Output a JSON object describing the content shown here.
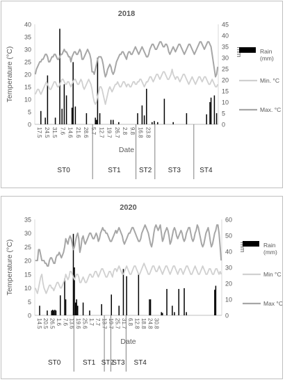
{
  "colors": {
    "temp_line": "#a6a6a6",
    "min_line": "#d0d0d0",
    "rain_bar": "#000000",
    "axis_text": "#595959",
    "grid": "#d9d9d9"
  },
  "chart_data": [
    {
      "type": "bar+line",
      "title": "2018",
      "xlabel": "Date",
      "ylabel": "Temperature (°C)",
      "ylabel_right": "mm",
      "ylim": [
        0,
        40
      ],
      "yticks": [
        0,
        5,
        10,
        15,
        20,
        25,
        30,
        35,
        40
      ],
      "ylim_right": [
        0,
        45
      ],
      "yticks_right": [
        0,
        5,
        10,
        15,
        20,
        25,
        30,
        35,
        40,
        45
      ],
      "grid": false,
      "legend_position": "right",
      "legend": [
        {
          "label": "Rain\n(mm)",
          "type": "bar"
        },
        {
          "label": "Min. °C",
          "type": "line"
        },
        {
          "label": "Max. °C",
          "type": "line"
        }
      ],
      "n_days": 165,
      "x_tick_labels": [
        "17.5",
        "24.5",
        "31.5",
        "7.6",
        "14.6",
        "21.6",
        "28.6",
        "5.7",
        "12.7",
        "19.7",
        "26.7",
        "2.8",
        "9.8",
        "16.8",
        "23.8"
      ],
      "x_tick_step": 7,
      "stages": [
        {
          "label": "ST0",
          "start": 0,
          "end": 52
        },
        {
          "label": "ST1",
          "start": 52,
          "end": 91
        },
        {
          "label": "ST2",
          "start": 91,
          "end": 108
        },
        {
          "label": "ST3",
          "start": 108,
          "end": 143
        },
        {
          "label": "ST4",
          "start": 143,
          "end": 165
        }
      ],
      "series": [
        {
          "name": "Max. °C",
          "axis": "left",
          "values": [
            20,
            22,
            23,
            24,
            25,
            25,
            26,
            26,
            27,
            28,
            28,
            27,
            25,
            25,
            26,
            27,
            27,
            28,
            28,
            27,
            26,
            26,
            27,
            28,
            28,
            29,
            30,
            29,
            29,
            28,
            27,
            27,
            25,
            27,
            28,
            29,
            29,
            28,
            28,
            29,
            30,
            29,
            26,
            26,
            27,
            28,
            29,
            30,
            29,
            28,
            26,
            21,
            21,
            20,
            22,
            24,
            26,
            27,
            27,
            27,
            26,
            24,
            21,
            19,
            20,
            22,
            23,
            24,
            23,
            21,
            20,
            21,
            23,
            25,
            26,
            27,
            28,
            28,
            29,
            29,
            28,
            27,
            26,
            28,
            29,
            29,
            28,
            28,
            29,
            30,
            31,
            30,
            29,
            28,
            29,
            30,
            31,
            30,
            29,
            28,
            27,
            27,
            28,
            30,
            31,
            32,
            32,
            31,
            30,
            30,
            31,
            32,
            33,
            33,
            32,
            31,
            31,
            32,
            32,
            31,
            29,
            28,
            29,
            30,
            31,
            30,
            29,
            30,
            31,
            32,
            32,
            31,
            30,
            29,
            28,
            29,
            30,
            31,
            32,
            32,
            31,
            30,
            29,
            28,
            29,
            30,
            31,
            32,
            33,
            33,
            32,
            31,
            30,
            31,
            32,
            33,
            33,
            32,
            31,
            28,
            25,
            22,
            19,
            20,
            23
          ]
        },
        {
          "name": "Min. °C",
          "axis": "left",
          "values": [
            12,
            13,
            14,
            14,
            13,
            12,
            13,
            14,
            15,
            16,
            17,
            16,
            15,
            14,
            14,
            15,
            16,
            17,
            17,
            16,
            15,
            15,
            16,
            17,
            18,
            18,
            17,
            16,
            16,
            17,
            17,
            16,
            15,
            16,
            17,
            18,
            18,
            17,
            16,
            16,
            17,
            18,
            17,
            15,
            14,
            15,
            16,
            17,
            18,
            17,
            16,
            14,
            11,
            9,
            8,
            9,
            11,
            13,
            15,
            15,
            14,
            12,
            10,
            8,
            10,
            12,
            14,
            15,
            14,
            13,
            14,
            15,
            16,
            16,
            17,
            16,
            15,
            15,
            16,
            17,
            17,
            16,
            15,
            16,
            16,
            15,
            15,
            16,
            17,
            17,
            16,
            16,
            17,
            17,
            18,
            18,
            17,
            16,
            15,
            16,
            17,
            17,
            18,
            19,
            19,
            18,
            17,
            18,
            19,
            20,
            20,
            19,
            18,
            19,
            20,
            21,
            21,
            20,
            19,
            18,
            18,
            19,
            20,
            22,
            20,
            19,
            18,
            19,
            19,
            18,
            17,
            18,
            19,
            20,
            20,
            19,
            18,
            17,
            16,
            17,
            18,
            19,
            18,
            17,
            16,
            17,
            18,
            19,
            19,
            18,
            17,
            18,
            19,
            19,
            18,
            17,
            16,
            16,
            17,
            18,
            17,
            16,
            15,
            15,
            16
          ]
        },
        {
          "name": "Rain (mm)",
          "axis": "right",
          "type": "bar",
          "points": [
            [
              5,
              6
            ],
            [
              9,
              3
            ],
            [
              11,
              22
            ],
            [
              18,
              3
            ],
            [
              22,
              43
            ],
            [
              24,
              7
            ],
            [
              26,
              18
            ],
            [
              28,
              13
            ],
            [
              33,
              7.5
            ],
            [
              34,
              28
            ],
            [
              36,
              8
            ],
            [
              46,
              5
            ],
            [
              54,
              3
            ],
            [
              55,
              2
            ],
            [
              56,
              30
            ],
            [
              58,
              5
            ],
            [
              68,
              2
            ],
            [
              70,
              2
            ],
            [
              75,
              1
            ],
            [
              92,
              5
            ],
            [
              96,
              8.5
            ],
            [
              98,
              4
            ],
            [
              100,
              16
            ],
            [
              105,
              1
            ],
            [
              107,
              1.5
            ],
            [
              110,
              1
            ],
            [
              116,
              11.5
            ],
            [
              124,
              1
            ],
            [
              136,
              5
            ],
            [
              154,
              4.5
            ],
            [
              157,
              10
            ],
            [
              158,
              12
            ],
            [
              161,
              13
            ],
            [
              163,
              5
            ]
          ]
        }
      ]
    },
    {
      "type": "bar+line",
      "title": "2020",
      "xlabel": "Date",
      "ylabel": "Temperature (°C)",
      "ylabel_right": "mm",
      "ylim": [
        0,
        35
      ],
      "yticks": [
        0,
        5,
        10,
        15,
        20,
        25,
        30,
        35
      ],
      "ylim_right": [
        0,
        60
      ],
      "yticks_right": [
        0,
        10,
        20,
        30,
        40,
        50,
        60
      ],
      "grid": false,
      "legend_position": "right",
      "legend": [
        {
          "label": "Rain\n(mm)",
          "type": "bar"
        },
        {
          "label": "Min °C",
          "type": "line"
        },
        {
          "label": "Max °C",
          "type": "line"
        }
      ],
      "n_days": 172,
      "x_tick_labels": [
        "14.5",
        "20.5",
        "26.5",
        "1.6",
        "7.6",
        "13.6",
        "19.6",
        "25.6",
        "1.7",
        "7.7",
        "13.7",
        "19.7",
        "25.7",
        "31.7",
        "6.8",
        "12.8",
        "18.8",
        "24.8",
        "30.8"
      ],
      "x_tick_step": 6,
      "stages": [
        {
          "label": "ST0",
          "start": 0,
          "end": 36
        },
        {
          "label": "ST1",
          "start": 36,
          "end": 64
        },
        {
          "label": "ST2",
          "start": 64,
          "end": 70
        },
        {
          "label": "ST3",
          "start": 70,
          "end": 84
        },
        {
          "label": "ST4",
          "start": 84,
          "end": 110
        }
      ],
      "series": [
        {
          "name": "Max °C",
          "axis": "left",
          "values": [
            20,
            20,
            20,
            24,
            24,
            22,
            20,
            20,
            20,
            19,
            19,
            18,
            18,
            20,
            21,
            21,
            20,
            19,
            19,
            21,
            22,
            22,
            23,
            22,
            21,
            22,
            23,
            25,
            28,
            27,
            26,
            28,
            29,
            28,
            26,
            24,
            25,
            27,
            29,
            30,
            28,
            23,
            25,
            28,
            29,
            27,
            26,
            27,
            28,
            29,
            30,
            30,
            29,
            28,
            28,
            29,
            30,
            29,
            27,
            28,
            30,
            31,
            32,
            31,
            31,
            30,
            30,
            29,
            28,
            27,
            27,
            28,
            29,
            30,
            31,
            30,
            31,
            32,
            31,
            30,
            29,
            27,
            26,
            27,
            28,
            29,
            30,
            30,
            31,
            32,
            32,
            31,
            30,
            29,
            28,
            27,
            27,
            28,
            30,
            31,
            32,
            33,
            32,
            31,
            30,
            28,
            26,
            25,
            27,
            30,
            32,
            33,
            32,
            31,
            32,
            33,
            30,
            27,
            28,
            30,
            31,
            32,
            31,
            29,
            26,
            27,
            29,
            31,
            32,
            31,
            29,
            28,
            29,
            30,
            31,
            30,
            28,
            27,
            28,
            30,
            31,
            32,
            32,
            30,
            28,
            27,
            28,
            30,
            31,
            33,
            32,
            30,
            28,
            26,
            25,
            26,
            28,
            30,
            31,
            32,
            30,
            27,
            25,
            26,
            28,
            30,
            31,
            33,
            33,
            30,
            25,
            20
          ]
        },
        {
          "name": "Min °C",
          "axis": "left",
          "values": [
            10,
            9,
            8,
            10,
            12,
            14,
            15,
            12,
            10,
            9,
            8,
            9,
            10,
            11,
            11,
            10,
            10,
            9,
            10,
            11,
            12,
            12,
            11,
            10,
            10,
            11,
            12,
            13,
            15,
            14,
            13,
            14,
            16,
            16,
            15,
            14,
            13,
            14,
            15,
            15,
            14,
            12,
            12,
            13,
            14,
            13,
            12,
            12,
            13,
            14,
            15,
            15,
            14,
            14,
            15,
            16,
            16,
            15,
            14,
            15,
            16,
            17,
            17,
            16,
            15,
            14,
            14,
            15,
            16,
            16,
            15,
            14,
            16,
            17,
            17,
            16,
            17,
            18,
            17,
            16,
            15,
            15,
            16,
            17,
            18,
            17,
            16,
            15,
            15,
            16,
            17,
            18,
            18,
            17,
            16,
            15,
            15,
            16,
            17,
            18,
            19,
            18,
            17,
            16,
            15,
            15,
            16,
            17,
            18,
            18,
            17,
            16,
            16,
            17,
            18,
            17,
            16,
            15,
            16,
            17,
            18,
            18,
            17,
            16,
            15,
            16,
            17,
            18,
            18,
            17,
            16,
            15,
            16,
            17,
            17,
            16,
            15,
            16,
            17,
            18,
            18,
            17,
            16,
            15,
            15,
            16,
            17,
            18,
            17,
            16,
            15,
            15,
            16,
            17,
            18,
            17,
            16,
            15,
            15,
            16,
            17,
            17,
            16,
            15,
            15,
            16,
            17,
            17,
            16,
            15,
            16,
            15
          ]
        },
        {
          "name": "Rain (mm)",
          "axis": "right",
          "type": "bar",
          "points": [
            [
              4,
              6
            ],
            [
              11,
              3
            ],
            [
              15,
              3
            ],
            [
              16,
              3.5
            ],
            [
              17,
              3
            ],
            [
              18,
              3.5
            ],
            [
              19,
              3
            ],
            [
              23,
              12.5
            ],
            [
              27,
              23
            ],
            [
              28,
              10
            ],
            [
              35,
              51
            ],
            [
              36,
              30
            ],
            [
              37,
              8
            ],
            [
              38,
              10
            ],
            [
              39,
              6
            ],
            [
              44,
              8
            ],
            [
              50,
              3
            ],
            [
              61,
              7
            ],
            [
              70,
              13
            ],
            [
              77,
              6
            ],
            [
              81,
              29
            ],
            [
              84,
              24.5
            ],
            [
              95,
              25.5
            ],
            [
              105,
              10
            ],
            [
              106,
              10
            ],
            [
              116,
              2
            ],
            [
              117,
              1.5
            ],
            [
              121,
              16.5
            ],
            [
              126,
              6
            ],
            [
              128,
              2
            ],
            [
              132,
              16.5
            ],
            [
              137,
              17
            ],
            [
              139,
              2
            ],
            [
              165,
              16
            ],
            [
              166,
              18.5
            ]
          ]
        }
      ]
    }
  ]
}
